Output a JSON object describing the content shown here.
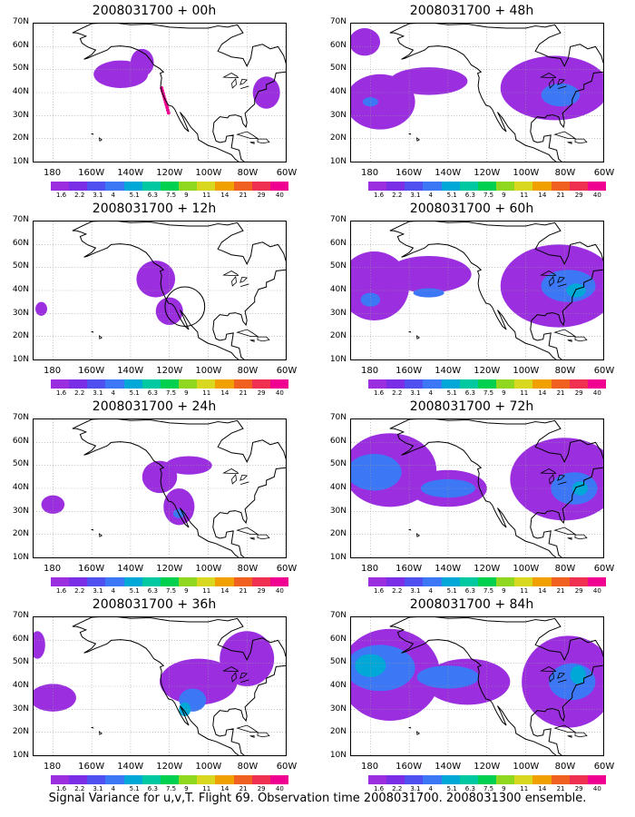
{
  "panels": [
    {
      "title": "2008031700 + 00h",
      "col": 0,
      "row": 0,
      "level": 0
    },
    {
      "title": "2008031700 + 48h",
      "col": 1,
      "row": 0,
      "level": 4
    },
    {
      "title": "2008031700 + 12h",
      "col": 0,
      "row": 1,
      "level": 1
    },
    {
      "title": "2008031700 + 60h",
      "col": 1,
      "row": 1,
      "level": 5
    },
    {
      "title": "2008031700 + 24h",
      "col": 0,
      "row": 2,
      "level": 2
    },
    {
      "title": "2008031700 + 72h",
      "col": 1,
      "row": 2,
      "level": 6
    },
    {
      "title": "2008031700 + 36h",
      "col": 0,
      "row": 3,
      "level": 3
    },
    {
      "title": "2008031700 + 84h",
      "col": 1,
      "row": 3,
      "level": 7
    }
  ],
  "lat_labels": [
    "70N",
    "60N",
    "50N",
    "40N",
    "30N",
    "20N",
    "10N"
  ],
  "lon_labels": [
    "180",
    "160W",
    "140W",
    "120W",
    "100W",
    "80W",
    "60W"
  ],
  "colorbar": {
    "colors": [
      "#9b2fe0",
      "#7a2fe6",
      "#5050f0",
      "#3c78f5",
      "#00a8d8",
      "#00c8a0",
      "#00d050",
      "#90d820",
      "#d8d820",
      "#f0a000",
      "#f06020",
      "#f03050",
      "#f00090"
    ],
    "labels": [
      "1.6",
      "2.2",
      "3.1",
      "4",
      "5.1",
      "6.3",
      "7.5",
      "9",
      "11",
      "14",
      "21",
      "29",
      "40",
      ""
    ]
  },
  "caption": "Signal Variance for u,v,T. Flight 69. Observation time 2008031700. 2008031300 ensemble."
}
